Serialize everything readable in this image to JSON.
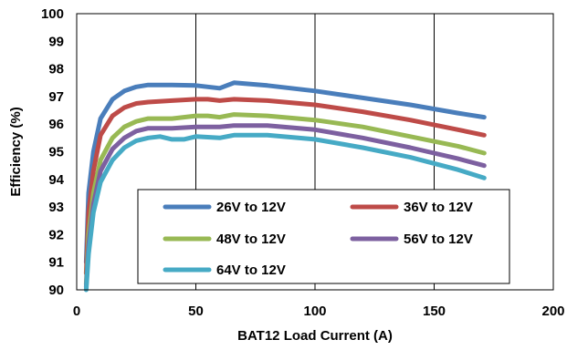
{
  "chart_data": {
    "type": "line",
    "title": "",
    "xlabel": "BAT12 Load Current (A)",
    "ylabel": "Efficiency (%)",
    "xlim": [
      0,
      200
    ],
    "ylim": [
      90,
      100
    ],
    "xticks": [
      "0",
      "50",
      "100",
      "150",
      "200"
    ],
    "yticks": [
      "90",
      "91",
      "92",
      "93",
      "94",
      "95",
      "96",
      "97",
      "98",
      "99",
      "100"
    ],
    "grid": "vertical",
    "legend": "bottom-center",
    "series": [
      {
        "name": "26V to 12V",
        "color": "#4a7ebb",
        "points": [
          [
            4,
            91.0
          ],
          [
            5,
            93.5
          ],
          [
            7,
            95.0
          ],
          [
            10,
            96.2
          ],
          [
            15,
            96.9
          ],
          [
            20,
            97.2
          ],
          [
            25,
            97.35
          ],
          [
            30,
            97.42
          ],
          [
            40,
            97.42
          ],
          [
            50,
            97.4
          ],
          [
            55,
            97.35
          ],
          [
            60,
            97.3
          ],
          [
            63,
            97.4
          ],
          [
            66,
            97.5
          ],
          [
            80,
            97.4
          ],
          [
            100,
            97.2
          ],
          [
            120,
            96.95
          ],
          [
            140,
            96.7
          ],
          [
            160,
            96.4
          ],
          [
            171,
            96.25
          ]
        ]
      },
      {
        "name": "36V to 12V",
        "color": "#be4b48",
        "points": [
          [
            4,
            90.6
          ],
          [
            5,
            92.8
          ],
          [
            7,
            94.3
          ],
          [
            10,
            95.6
          ],
          [
            15,
            96.3
          ],
          [
            20,
            96.6
          ],
          [
            25,
            96.75
          ],
          [
            30,
            96.8
          ],
          [
            40,
            96.85
          ],
          [
            50,
            96.9
          ],
          [
            55,
            96.9
          ],
          [
            60,
            96.85
          ],
          [
            66,
            96.9
          ],
          [
            80,
            96.85
          ],
          [
            100,
            96.7
          ],
          [
            120,
            96.45
          ],
          [
            140,
            96.15
          ],
          [
            160,
            95.8
          ],
          [
            171,
            95.6
          ]
        ]
      },
      {
        "name": "48V to 12V",
        "color": "#98b954",
        "points": [
          [
            4,
            90.2
          ],
          [
            5,
            92.0
          ],
          [
            7,
            93.5
          ],
          [
            10,
            94.7
          ],
          [
            15,
            95.5
          ],
          [
            20,
            95.9
          ],
          [
            25,
            96.1
          ],
          [
            30,
            96.2
          ],
          [
            40,
            96.2
          ],
          [
            50,
            96.3
          ],
          [
            55,
            96.3
          ],
          [
            60,
            96.25
          ],
          [
            66,
            96.35
          ],
          [
            80,
            96.3
          ],
          [
            100,
            96.15
          ],
          [
            120,
            95.9
          ],
          [
            140,
            95.55
          ],
          [
            160,
            95.2
          ],
          [
            171,
            94.95
          ]
        ]
      },
      {
        "name": "56V to 12V",
        "color": "#7d60a0",
        "points": [
          [
            4,
            90.1
          ],
          [
            5,
            91.6
          ],
          [
            7,
            93.1
          ],
          [
            10,
            94.3
          ],
          [
            15,
            95.1
          ],
          [
            20,
            95.5
          ],
          [
            25,
            95.75
          ],
          [
            30,
            95.85
          ],
          [
            40,
            95.85
          ],
          [
            50,
            95.9
          ],
          [
            60,
            95.9
          ],
          [
            66,
            95.95
          ],
          [
            80,
            95.95
          ],
          [
            100,
            95.8
          ],
          [
            120,
            95.5
          ],
          [
            140,
            95.15
          ],
          [
            160,
            94.75
          ],
          [
            171,
            94.5
          ]
        ]
      },
      {
        "name": "64V to 12V",
        "color": "#46aac5",
        "points": [
          [
            4,
            90.0
          ],
          [
            5,
            91.3
          ],
          [
            7,
            92.8
          ],
          [
            10,
            93.9
          ],
          [
            15,
            94.7
          ],
          [
            20,
            95.15
          ],
          [
            25,
            95.4
          ],
          [
            30,
            95.5
          ],
          [
            35,
            95.55
          ],
          [
            40,
            95.45
          ],
          [
            45,
            95.45
          ],
          [
            50,
            95.55
          ],
          [
            60,
            95.5
          ],
          [
            66,
            95.6
          ],
          [
            80,
            95.6
          ],
          [
            100,
            95.45
          ],
          [
            120,
            95.15
          ],
          [
            140,
            94.8
          ],
          [
            160,
            94.35
          ],
          [
            171,
            94.05
          ]
        ]
      }
    ]
  }
}
